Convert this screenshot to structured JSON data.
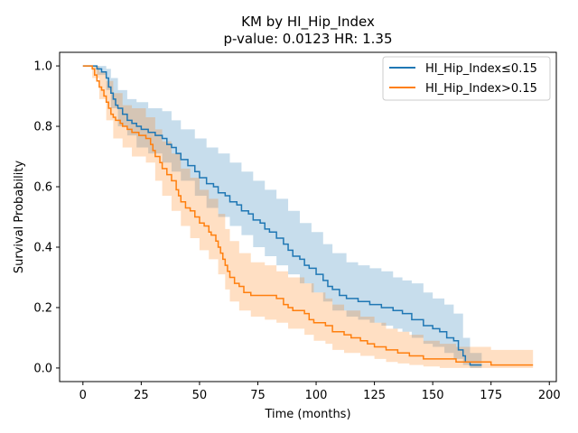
{
  "chart_data": {
    "type": "line",
    "title_line1": "KM by HI_Hip_Index",
    "title_line2": "p-value: 0.0123  HR: 1.35",
    "xlabel": "Time (months)",
    "ylabel": "Survival Probability",
    "xlim": [
      -10,
      203
    ],
    "ylim": [
      -0.045,
      1.045
    ],
    "xticks": [
      0,
      25,
      50,
      75,
      100,
      125,
      150,
      175,
      200
    ],
    "xtick_labels": [
      "0",
      "25",
      "50",
      "75",
      "100",
      "125",
      "150",
      "175",
      "200"
    ],
    "yticks": [
      0.0,
      0.2,
      0.4,
      0.6,
      0.8,
      1.0
    ],
    "ytick_labels": [
      "0.0",
      "0.2",
      "0.4",
      "0.6",
      "0.8",
      "1.0"
    ],
    "grid": false,
    "legend_position": "top-right",
    "series": [
      {
        "name": "HI_Hip_Index≤0.15",
        "color": "#1f77b4",
        "steps": [
          [
            0,
            1.0
          ],
          [
            6,
            0.99
          ],
          [
            8,
            0.98
          ],
          [
            10,
            0.96
          ],
          [
            11,
            0.93
          ],
          [
            12,
            0.91
          ],
          [
            13,
            0.89
          ],
          [
            14,
            0.87
          ],
          [
            15,
            0.86
          ],
          [
            17,
            0.84
          ],
          [
            19,
            0.82
          ],
          [
            21,
            0.81
          ],
          [
            23,
            0.8
          ],
          [
            25,
            0.79
          ],
          [
            28,
            0.78
          ],
          [
            31,
            0.77
          ],
          [
            34,
            0.76
          ],
          [
            36,
            0.74
          ],
          [
            38,
            0.73
          ],
          [
            40,
            0.71
          ],
          [
            42,
            0.69
          ],
          [
            45,
            0.67
          ],
          [
            48,
            0.65
          ],
          [
            50,
            0.63
          ],
          [
            53,
            0.61
          ],
          [
            56,
            0.6
          ],
          [
            58,
            0.58
          ],
          [
            61,
            0.57
          ],
          [
            63,
            0.55
          ],
          [
            66,
            0.54
          ],
          [
            68,
            0.52
          ],
          [
            71,
            0.51
          ],
          [
            73,
            0.49
          ],
          [
            76,
            0.48
          ],
          [
            78,
            0.46
          ],
          [
            80,
            0.45
          ],
          [
            83,
            0.43
          ],
          [
            86,
            0.41
          ],
          [
            88,
            0.39
          ],
          [
            90,
            0.37
          ],
          [
            93,
            0.36
          ],
          [
            95,
            0.34
          ],
          [
            97,
            0.33
          ],
          [
            100,
            0.31
          ],
          [
            103,
            0.29
          ],
          [
            105,
            0.27
          ],
          [
            107,
            0.26
          ],
          [
            110,
            0.24
          ],
          [
            113,
            0.23
          ],
          [
            118,
            0.22
          ],
          [
            123,
            0.21
          ],
          [
            128,
            0.2
          ],
          [
            133,
            0.19
          ],
          [
            137,
            0.18
          ],
          [
            141,
            0.16
          ],
          [
            146,
            0.14
          ],
          [
            150,
            0.13
          ],
          [
            153,
            0.12
          ],
          [
            156,
            0.1
          ],
          [
            159,
            0.09
          ],
          [
            161,
            0.06
          ],
          [
            163,
            0.04
          ],
          [
            164,
            0.02
          ],
          [
            166,
            0.01
          ],
          [
            171,
            0.01
          ]
        ],
        "ci_upper": [
          [
            0,
            1.0
          ],
          [
            6,
            1.0
          ],
          [
            10,
            0.99
          ],
          [
            12,
            0.96
          ],
          [
            15,
            0.92
          ],
          [
            19,
            0.89
          ],
          [
            23,
            0.88
          ],
          [
            28,
            0.86
          ],
          [
            34,
            0.85
          ],
          [
            38,
            0.82
          ],
          [
            42,
            0.79
          ],
          [
            48,
            0.76
          ],
          [
            53,
            0.73
          ],
          [
            58,
            0.71
          ],
          [
            63,
            0.68
          ],
          [
            68,
            0.65
          ],
          [
            73,
            0.62
          ],
          [
            78,
            0.59
          ],
          [
            83,
            0.56
          ],
          [
            88,
            0.52
          ],
          [
            93,
            0.48
          ],
          [
            98,
            0.45
          ],
          [
            103,
            0.41
          ],
          [
            107,
            0.38
          ],
          [
            113,
            0.35
          ],
          [
            118,
            0.34
          ],
          [
            123,
            0.33
          ],
          [
            128,
            0.32
          ],
          [
            133,
            0.3
          ],
          [
            137,
            0.29
          ],
          [
            141,
            0.28
          ],
          [
            146,
            0.25
          ],
          [
            150,
            0.23
          ],
          [
            155,
            0.21
          ],
          [
            159,
            0.18
          ],
          [
            163,
            0.1
          ],
          [
            166,
            0.05
          ],
          [
            171,
            0.05
          ]
        ],
        "ci_lower": [
          [
            0,
            1.0
          ],
          [
            6,
            0.97
          ],
          [
            10,
            0.92
          ],
          [
            12,
            0.86
          ],
          [
            15,
            0.8
          ],
          [
            19,
            0.77
          ],
          [
            23,
            0.73
          ],
          [
            28,
            0.71
          ],
          [
            34,
            0.68
          ],
          [
            38,
            0.65
          ],
          [
            42,
            0.62
          ],
          [
            48,
            0.57
          ],
          [
            53,
            0.53
          ],
          [
            58,
            0.5
          ],
          [
            63,
            0.47
          ],
          [
            68,
            0.44
          ],
          [
            73,
            0.4
          ],
          [
            78,
            0.37
          ],
          [
            83,
            0.34
          ],
          [
            88,
            0.31
          ],
          [
            93,
            0.28
          ],
          [
            98,
            0.25
          ],
          [
            103,
            0.22
          ],
          [
            107,
            0.19
          ],
          [
            113,
            0.17
          ],
          [
            118,
            0.16
          ],
          [
            123,
            0.15
          ],
          [
            128,
            0.14
          ],
          [
            133,
            0.13
          ],
          [
            137,
            0.12
          ],
          [
            141,
            0.1
          ],
          [
            146,
            0.08
          ],
          [
            150,
            0.07
          ],
          [
            155,
            0.05
          ],
          [
            159,
            0.03
          ],
          [
            163,
            0.01
          ],
          [
            166,
            0.0
          ],
          [
            171,
            0.0
          ]
        ]
      },
      {
        "name": "HI_Hip_Index>0.15",
        "color": "#ff7f0e",
        "steps": [
          [
            0,
            1.0
          ],
          [
            4,
            0.99
          ],
          [
            5,
            0.97
          ],
          [
            6,
            0.95
          ],
          [
            7,
            0.93
          ],
          [
            8,
            0.92
          ],
          [
            9,
            0.9
          ],
          [
            10,
            0.88
          ],
          [
            11,
            0.86
          ],
          [
            12,
            0.84
          ],
          [
            13,
            0.83
          ],
          [
            14,
            0.82
          ],
          [
            16,
            0.81
          ],
          [
            17,
            0.8
          ],
          [
            19,
            0.79
          ],
          [
            21,
            0.78
          ],
          [
            24,
            0.77
          ],
          [
            27,
            0.76
          ],
          [
            29,
            0.74
          ],
          [
            30,
            0.72
          ],
          [
            31,
            0.7
          ],
          [
            33,
            0.68
          ],
          [
            34,
            0.66
          ],
          [
            36,
            0.64
          ],
          [
            38,
            0.62
          ],
          [
            40,
            0.59
          ],
          [
            41,
            0.57
          ],
          [
            42,
            0.55
          ],
          [
            44,
            0.53
          ],
          [
            46,
            0.52
          ],
          [
            48,
            0.5
          ],
          [
            50,
            0.48
          ],
          [
            52,
            0.47
          ],
          [
            54,
            0.45
          ],
          [
            55,
            0.44
          ],
          [
            57,
            0.42
          ],
          [
            58,
            0.4
          ],
          [
            59,
            0.38
          ],
          [
            60,
            0.36
          ],
          [
            61,
            0.34
          ],
          [
            62,
            0.32
          ],
          [
            63,
            0.3
          ],
          [
            65,
            0.28
          ],
          [
            67,
            0.27
          ],
          [
            69,
            0.25
          ],
          [
            72,
            0.24
          ],
          [
            78,
            0.24
          ],
          [
            83,
            0.23
          ],
          [
            86,
            0.21
          ],
          [
            88,
            0.2
          ],
          [
            90,
            0.19
          ],
          [
            95,
            0.18
          ],
          [
            97,
            0.16
          ],
          [
            99,
            0.15
          ],
          [
            104,
            0.14
          ],
          [
            107,
            0.12
          ],
          [
            112,
            0.11
          ],
          [
            115,
            0.1
          ],
          [
            119,
            0.09
          ],
          [
            122,
            0.08
          ],
          [
            125,
            0.07
          ],
          [
            130,
            0.06
          ],
          [
            135,
            0.05
          ],
          [
            140,
            0.04
          ],
          [
            146,
            0.03
          ],
          [
            153,
            0.03
          ],
          [
            160,
            0.02
          ],
          [
            175,
            0.01
          ],
          [
            193,
            0.01
          ]
        ],
        "ci_upper": [
          [
            0,
            1.0
          ],
          [
            4,
            1.0
          ],
          [
            7,
            0.98
          ],
          [
            10,
            0.95
          ],
          [
            13,
            0.91
          ],
          [
            17,
            0.87
          ],
          [
            21,
            0.86
          ],
          [
            27,
            0.83
          ],
          [
            31,
            0.79
          ],
          [
            34,
            0.75
          ],
          [
            38,
            0.71
          ],
          [
            42,
            0.66
          ],
          [
            46,
            0.63
          ],
          [
            50,
            0.59
          ],
          [
            54,
            0.56
          ],
          [
            58,
            0.51
          ],
          [
            61,
            0.46
          ],
          [
            63,
            0.42
          ],
          [
            67,
            0.38
          ],
          [
            72,
            0.35
          ],
          [
            78,
            0.34
          ],
          [
            83,
            0.32
          ],
          [
            88,
            0.3
          ],
          [
            95,
            0.28
          ],
          [
            99,
            0.25
          ],
          [
            104,
            0.23
          ],
          [
            107,
            0.21
          ],
          [
            112,
            0.19
          ],
          [
            119,
            0.17
          ],
          [
            125,
            0.15
          ],
          [
            130,
            0.13
          ],
          [
            135,
            0.12
          ],
          [
            140,
            0.11
          ],
          [
            146,
            0.09
          ],
          [
            153,
            0.08
          ],
          [
            160,
            0.07
          ],
          [
            175,
            0.06
          ],
          [
            193,
            0.05
          ]
        ],
        "ci_lower": [
          [
            0,
            1.0
          ],
          [
            4,
            0.96
          ],
          [
            7,
            0.89
          ],
          [
            10,
            0.82
          ],
          [
            13,
            0.76
          ],
          [
            17,
            0.73
          ],
          [
            21,
            0.7
          ],
          [
            27,
            0.68
          ],
          [
            31,
            0.62
          ],
          [
            34,
            0.57
          ],
          [
            38,
            0.52
          ],
          [
            42,
            0.47
          ],
          [
            46,
            0.43
          ],
          [
            50,
            0.39
          ],
          [
            54,
            0.36
          ],
          [
            58,
            0.31
          ],
          [
            61,
            0.26
          ],
          [
            63,
            0.22
          ],
          [
            67,
            0.19
          ],
          [
            72,
            0.17
          ],
          [
            78,
            0.16
          ],
          [
            83,
            0.15
          ],
          [
            88,
            0.13
          ],
          [
            95,
            0.11
          ],
          [
            99,
            0.09
          ],
          [
            104,
            0.08
          ],
          [
            107,
            0.06
          ],
          [
            112,
            0.05
          ],
          [
            119,
            0.04
          ],
          [
            125,
            0.03
          ],
          [
            130,
            0.02
          ],
          [
            135,
            0.015
          ],
          [
            140,
            0.01
          ],
          [
            146,
            0.005
          ],
          [
            153,
            0.0
          ],
          [
            160,
            0.0
          ],
          [
            175,
            0.0
          ],
          [
            193,
            0.0
          ]
        ]
      }
    ]
  }
}
